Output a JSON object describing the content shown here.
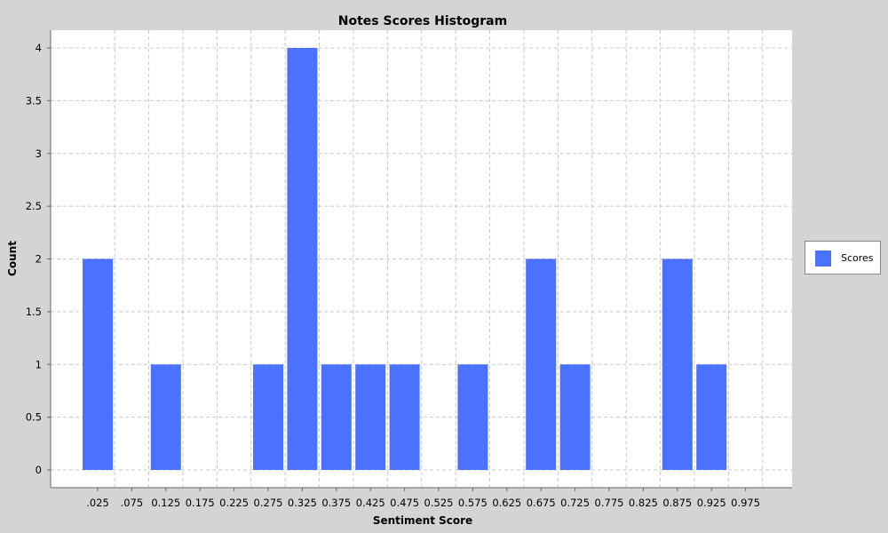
{
  "chart_data": {
    "type": "bar",
    "title": "Notes Scores Histogram",
    "xlabel": "Sentiment Score",
    "ylabel": "Count",
    "categories": [
      ".025",
      ".075",
      "0.125",
      "0.175",
      "0.225",
      "0.275",
      "0.325",
      "0.375",
      "0.425",
      "0.475",
      "0.525",
      "0.575",
      "0.625",
      "0.675",
      "0.725",
      "0.775",
      "0.825",
      "0.875",
      "0.925",
      "0.975"
    ],
    "series": [
      {
        "name": "Scores",
        "values": [
          2,
          0,
          1,
          0,
          0,
          1,
          4,
          1,
          1,
          1,
          0,
          1,
          0,
          2,
          1,
          0,
          0,
          2,
          1,
          0
        ]
      }
    ],
    "ylim": [
      0,
      4
    ],
    "yticks": [
      "0",
      "0.5",
      "1",
      "1.5",
      "2",
      "2.5",
      "3",
      "3.5",
      "4"
    ],
    "grid": true,
    "legend_position": "right",
    "colors": {
      "bar": "#4a71ff",
      "plot_background": "#ffffff",
      "gridline": "#c8c8c8",
      "page_background": "#d4d4d4"
    }
  }
}
